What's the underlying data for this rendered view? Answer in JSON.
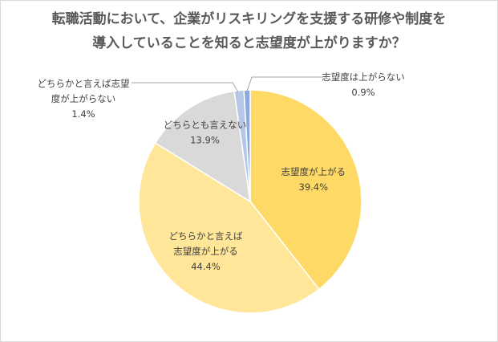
{
  "title_lines": [
    "転職活動において、企業がリスキリングを支援する研修や制度を",
    "導入していることを知ると志望度が上がりますか？"
  ],
  "chart_data": {
    "type": "pie",
    "title": "転職活動において、企業がリスキリングを支援する研修や制度を導入していることを知ると志望度が上がりますか？",
    "start_angle_deg": 0,
    "direction": "clockwise",
    "slices": [
      {
        "label_lines": [
          "志望度が上がる"
        ],
        "value": 39.4,
        "pct_text": "39.4%",
        "color": "#FFD966",
        "label_placement": "inside"
      },
      {
        "label_lines": [
          "どちらかと言えば",
          "志望度が上がる"
        ],
        "value": 44.4,
        "pct_text": "44.4%",
        "color": "#FFE699",
        "label_placement": "inside"
      },
      {
        "label_lines": [
          "どちらとも言えない"
        ],
        "value": 13.9,
        "pct_text": "13.9%",
        "color": "#D9D9D9",
        "label_placement": "inside"
      },
      {
        "label_lines": [
          "どちらかと言えば志望",
          "度が上がらない"
        ],
        "value": 1.4,
        "pct_text": "1.4%",
        "color": "#B4C7E7",
        "label_placement": "callout-left"
      },
      {
        "label_lines": [
          "志望度は上がらない"
        ],
        "value": 0.9,
        "pct_text": "0.9%",
        "color": "#8EA9DB",
        "label_placement": "callout-right"
      }
    ]
  }
}
